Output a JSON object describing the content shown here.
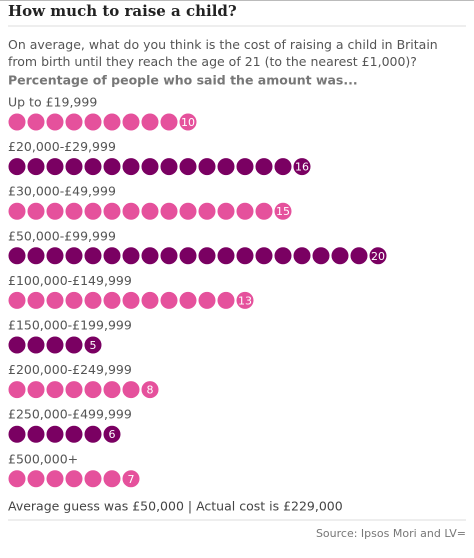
{
  "chart_data": {
    "type": "pictogram",
    "title": "How much to raise a child?",
    "subtitle": "On average, what do you think is the cost of raising a child in Britain from birth until they reach the age of 21 (to the nearest £1,000)?",
    "value_axis_label": "Percentage of people who said the amount was...",
    "categories": [
      "Up to £19,999",
      "£20,000-£29,999",
      "£30,000-£49,999",
      "£50,000-£99,999",
      "£100,000-£149,999",
      "£150,000-£199,999",
      "£200,000-£249,999",
      "£250,000-£499,999",
      "£500,000+"
    ],
    "values": [
      10,
      16,
      15,
      20,
      13,
      5,
      8,
      6,
      7
    ],
    "colors": [
      "#e5519c",
      "#7a0062",
      "#e5519c",
      "#7a0062",
      "#e5519c",
      "#7a0062",
      "#e5519c",
      "#7a0062",
      "#e5519c"
    ],
    "note": "Average guess was £50,000 | Actual cost is £229,000",
    "source": "Source: Ipsos Mori and LV="
  }
}
